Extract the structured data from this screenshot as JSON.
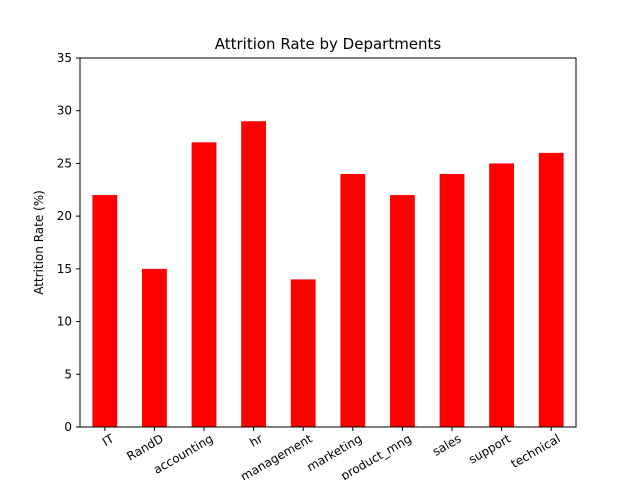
{
  "chart_data": {
    "type": "bar",
    "title": "Attrition Rate by Departments",
    "xlabel": "",
    "ylabel": "Attrition Rate (%)",
    "categories": [
      "IT",
      "RandD",
      "accounting",
      "hr",
      "management",
      "marketing",
      "product_mng",
      "sales",
      "support",
      "technical"
    ],
    "values": [
      22,
      15,
      27,
      29,
      14,
      24,
      22,
      24,
      25,
      26
    ],
    "ylim": [
      0,
      35
    ],
    "yticks": [
      "0",
      "5",
      "10",
      "15",
      "20",
      "25",
      "30",
      "35"
    ],
    "bar_color": "#ff0000",
    "grid": false,
    "legend": "none"
  }
}
